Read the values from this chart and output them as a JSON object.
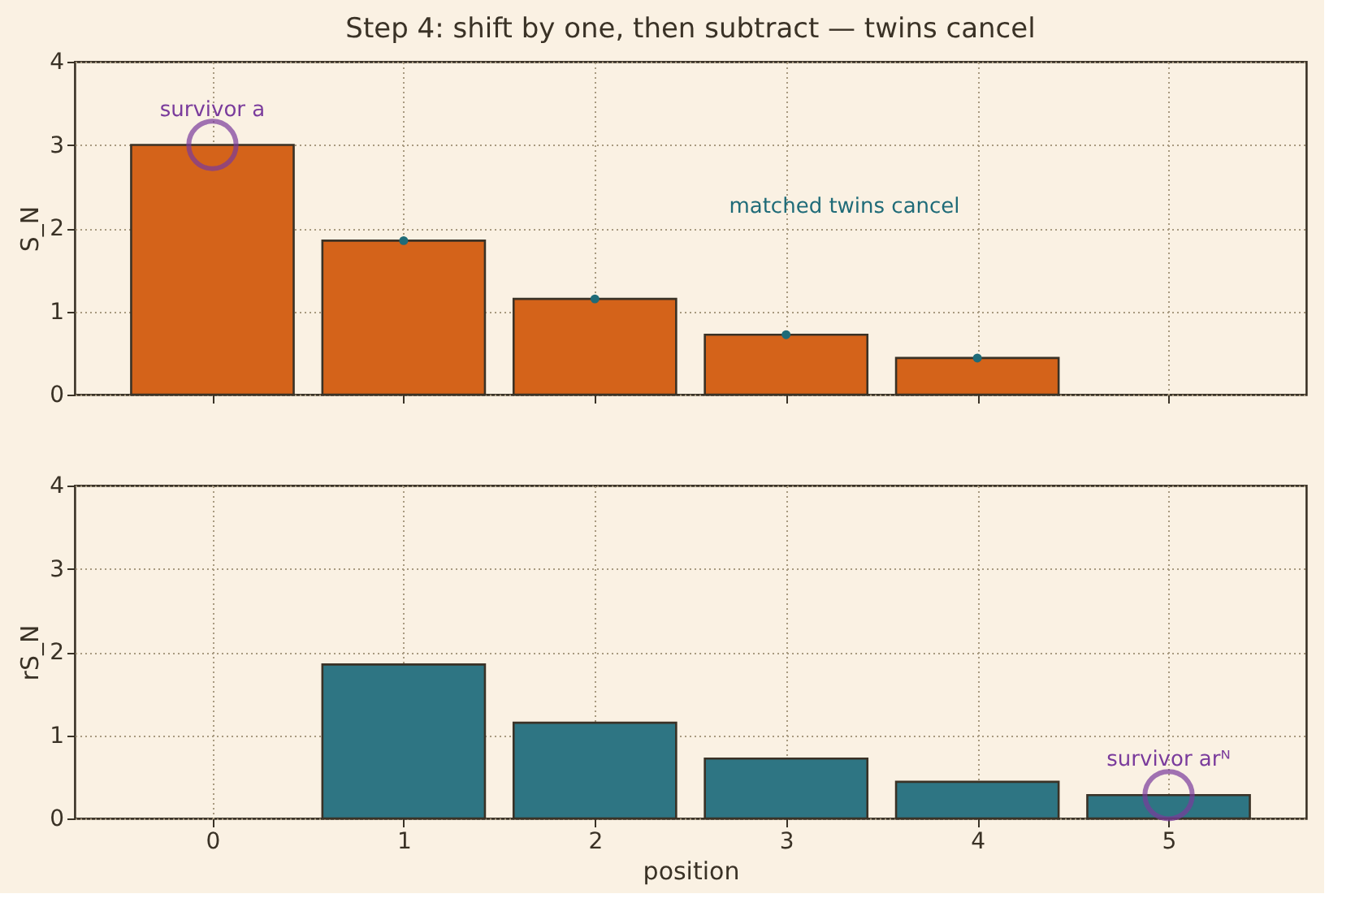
{
  "chart_data": [
    {
      "type": "bar",
      "title": "Step 4: shift by one, then subtract — twins cancel",
      "ylabel": "S_N",
      "series": [
        {
          "color": "#d4631a",
          "x": [
            0,
            1,
            2,
            3,
            4
          ],
          "values": [
            3,
            1.85,
            1.15,
            0.72,
            0.44
          ]
        },
        {
          "type": "scatter",
          "color": "#1f6b78",
          "x": [
            1,
            2,
            3,
            4
          ],
          "values": [
            1.85,
            1.15,
            0.72,
            0.44
          ]
        }
      ],
      "xlim": [
        -0.72,
        5.72
      ],
      "ylim": [
        0,
        4
      ],
      "xticks": [
        0,
        1,
        2,
        3,
        4,
        5
      ],
      "yticks": [
        0,
        1,
        2,
        3,
        4
      ],
      "grid": true,
      "tick_labels": "y",
      "annotations": [
        {
          "text": "survivor a",
          "x": 0,
          "y": 3
        },
        "matched twins cancel"
      ]
    },
    {
      "type": "bar",
      "xlabel": "position",
      "ylabel": "rS_N",
      "series": [
        {
          "color": "#2e7583",
          "x": [
            1,
            2,
            3,
            4,
            5
          ],
          "values": [
            1.85,
            1.15,
            0.72,
            0.44,
            0.28
          ]
        }
      ],
      "xlim": [
        -0.72,
        5.72
      ],
      "ylim": [
        0,
        4
      ],
      "xticks": [
        0,
        1,
        2,
        3,
        4,
        5
      ],
      "yticks": [
        0,
        1,
        2,
        3,
        4
      ],
      "grid": true,
      "annotations": [
        {
          "text": "survivor arᴺ",
          "x": 5,
          "y": 0.28
        }
      ]
    }
  ]
}
